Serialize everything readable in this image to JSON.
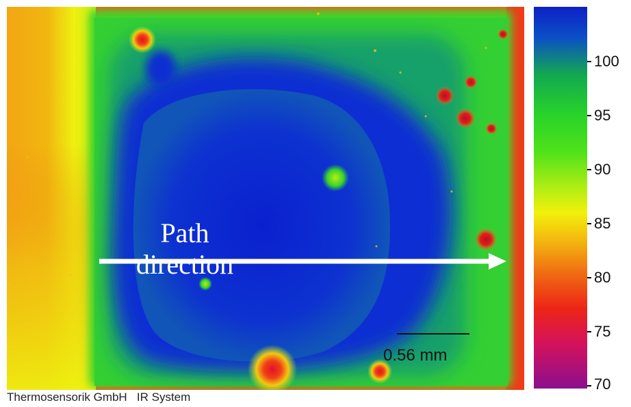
{
  "image": {
    "label_line1": "Path",
    "label_line2": "direction",
    "scale_label": "0.56 mm",
    "footer": "Thermosensorik GmbH   IR System"
  },
  "colorbar": {
    "ticks": [
      "100",
      "95",
      "90",
      "85",
      "80",
      "75",
      "70"
    ]
  },
  "colors": {
    "hot": "#ee3a17",
    "warm": "#f29a13",
    "yellow": "#f3ef10",
    "green": "#39d62a",
    "teal": "#0c8a8a",
    "blue": "#0a2dd2",
    "arrow": "#ffffff"
  }
}
